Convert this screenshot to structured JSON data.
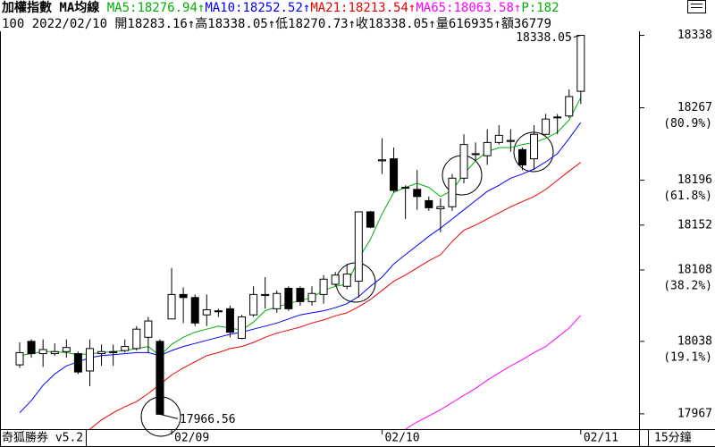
{
  "chart_data": {
    "type": "candlestick",
    "title": "加權指數 MA均線",
    "info_line": "100 2022/02/10 開18283.16↑高18338.05↑低18270.73↑收18338.05↑量616935↑額36779",
    "p_label": {
      "text": "P:182",
      "color": "#00b000"
    },
    "brand": "奇狐勝券 v5.2",
    "period": "15分鐘",
    "categories": [
      null,
      null,
      null,
      null,
      null,
      null,
      null,
      null,
      null,
      null,
      null,
      null,
      null,
      "02/09",
      null,
      null,
      null,
      null,
      null,
      null,
      null,
      null,
      null,
      null,
      null,
      null,
      null,
      null,
      null,
      null,
      null,
      "02/10",
      null,
      null,
      null,
      null,
      null,
      null,
      null,
      null,
      null,
      null,
      null,
      null,
      null,
      null,
      null,
      null,
      "02/11"
    ],
    "open": [
      18015,
      18038,
      18026,
      18026,
      18028,
      18026,
      18009,
      18026,
      18028,
      18029,
      18031,
      18042,
      18038,
      18060,
      18084,
      18081,
      18064,
      18068,
      18070,
      18041,
      18064,
      18083,
      18070,
      18090,
      18090,
      18077,
      18084,
      18094,
      18092,
      18097,
      18165,
      18215,
      18217,
      18189,
      18187,
      18176,
      18168,
      18170,
      18198,
      18222,
      18220,
      18233,
      18234,
      18226,
      18217,
      18241,
      18258,
      18259,
      18283.16
    ],
    "high": [
      18037,
      18040,
      18040,
      18036,
      18040,
      18028,
      18040,
      18035,
      18035,
      18040,
      18053,
      18062,
      18040,
      18110,
      18091,
      18084,
      18084,
      18070,
      18073,
      18064,
      18092,
      18101,
      18088,
      18092,
      18092,
      18092,
      18103,
      18106,
      18114,
      18165,
      18166,
      18237,
      18228,
      18191,
      18206,
      18180,
      18178,
      18202,
      18241,
      18233,
      18246,
      18250,
      18246,
      18228,
      18250,
      18261,
      18261,
      18285,
      18338.05
    ],
    "low": [
      18012,
      18022,
      18013,
      18024,
      18022,
      18006,
      17994,
      18014,
      18014,
      18027,
      18029,
      18027,
      17966.56,
      18060,
      18056,
      18053,
      18053,
      18062,
      18042,
      18040,
      18062,
      18070,
      18066,
      18068,
      18073,
      18073,
      18075,
      18092,
      18089,
      18081,
      18149,
      18202,
      18184,
      18158,
      18167,
      18166,
      18145,
      18166,
      18193,
      18215,
      18211,
      18231,
      18224,
      18206,
      18206,
      18240,
      18241,
      18257,
      18270.73
    ],
    "close": [
      18027,
      18026,
      18030,
      18028,
      18032,
      18008,
      18031,
      18028,
      18027,
      18033,
      18050,
      18058,
      17966.56,
      18084,
      18081,
      18056,
      18069,
      18067,
      18047,
      18062,
      18084,
      18084,
      18085,
      18070,
      18077,
      18085,
      18099,
      18103,
      18104,
      18165,
      18150,
      18216,
      18186,
      18189,
      18180,
      18169,
      18170,
      18198,
      18231,
      18222,
      18233,
      18240,
      18235,
      18211,
      18241,
      18256,
      18258,
      18278,
      18338.05
    ],
    "series": [
      {
        "name": "MA5",
        "label": "MA5:18276.94↑",
        "color": "#00b000",
        "values": [
          18024,
          18026,
          18028,
          18028,
          18027,
          18025,
          18026,
          18027,
          18028,
          18029,
          18031,
          18033,
          18024,
          18035,
          18042,
          18047,
          18050,
          18053,
          18051,
          18049,
          18057,
          18068,
          18072,
          18075,
          18078,
          18081,
          18088,
          18092,
          18094,
          18119,
          18138,
          18163,
          18184,
          18189,
          18193,
          18189,
          18180,
          18186,
          18202,
          18215,
          18224,
          18228,
          18228,
          18231,
          18233,
          18237,
          18243,
          18255,
          18276.94
        ]
      },
      {
        "name": "MA10",
        "label": "MA10:18252.52↑",
        "color": "#0000ff",
        "values": [
          17968,
          17980,
          17995,
          18006,
          18014,
          18018,
          18022,
          18024,
          18025,
          18026,
          18027,
          18027,
          18024,
          18029,
          18033,
          18036,
          18039,
          18042,
          18045,
          18047,
          18050,
          18053,
          18056,
          18060,
          18064,
          18066,
          18068,
          18071,
          18075,
          18082,
          18092,
          18101,
          18114,
          18123,
          18132,
          18141,
          18149,
          18158,
          18167,
          18176,
          18185,
          18191,
          18198,
          18202,
          18207,
          18214,
          18222,
          18237,
          18252.52
        ]
      },
      {
        "name": "MA21",
        "label": "MA21:18213.54↑",
        "color": "#ee0000",
        "values": [
          null,
          null,
          null,
          null,
          null,
          null,
          17952,
          17961,
          17968,
          17974,
          17979,
          17987,
          17996,
          18005,
          18012,
          18018,
          18024,
          18027,
          18031,
          18033,
          18037,
          18042,
          18046,
          18049,
          18052,
          18056,
          18059,
          18063,
          18066,
          18072,
          18079,
          18088,
          18097,
          18103,
          18110,
          18117,
          18123,
          18136,
          18147,
          18152,
          18158,
          18164,
          18170,
          18175,
          18180,
          18187,
          18196,
          18205,
          18213.54
        ]
      },
      {
        "name": "MA65",
        "label": "MA65:18063.58↑",
        "color": "#ff00ff",
        "values": [
          null,
          null,
          null,
          null,
          null,
          null,
          null,
          null,
          null,
          null,
          null,
          null,
          null,
          null,
          null,
          null,
          null,
          null,
          null,
          null,
          null,
          null,
          null,
          null,
          null,
          null,
          null,
          null,
          null,
          null,
          null,
          null,
          null,
          17952,
          17959,
          17965,
          17971,
          17978,
          17985,
          17992,
          18000,
          18007,
          18014,
          18020,
          18027,
          18033,
          18042,
          18051,
          18063.58
        ]
      }
    ],
    "ylim": [
      17952,
      18342
    ],
    "yticks": [
      17967,
      18038,
      18108,
      18152,
      18196,
      18267,
      18338
    ],
    "level_labels": [
      {
        "value": 18038,
        "label": "(19.1%)"
      },
      {
        "value": 18108,
        "label": "(38.2%)"
      },
      {
        "value": 18196,
        "label": "(61.8%)"
      },
      {
        "value": 18267,
        "label": "(80.9%)"
      }
    ],
    "up_color": "#ffffff",
    "down_color": "#000000"
  }
}
